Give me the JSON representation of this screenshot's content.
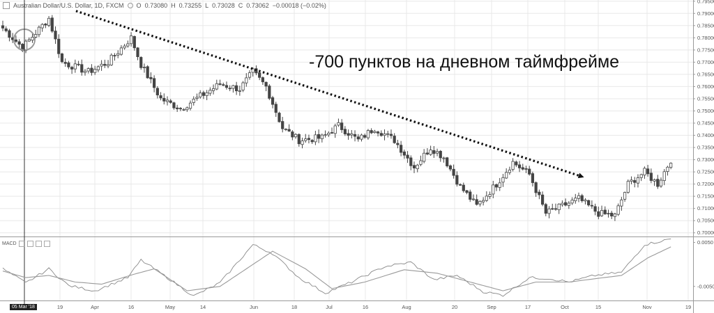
{
  "header": {
    "title": "Australian Dollar/U.S. Dollar, 1D, FXCM",
    "open_label": "O",
    "open": "0.73080",
    "high_label": "H",
    "high": "0.73255",
    "low_label": "L",
    "low": "0.73028",
    "close_label": "C",
    "close": "0.73062",
    "change": "−0.00018 (−0.02%)"
  },
  "annotation": "-700 пунктов на дневном таймфрейме",
  "macd_label": "MACD",
  "cursor_date": "05 Mar '18",
  "colors": {
    "up": "#ffffff",
    "down": "#444444",
    "wick": "#444444",
    "grid": "#e8e8e8",
    "trend": "#111111",
    "macd_line": "#888888",
    "signal_line": "#999999"
  },
  "chart_data": [
    {
      "type": "candlestick",
      "title": "Australian Dollar/U.S. Dollar, 1D, FXCM",
      "ylim": [
        0.6985,
        0.7955
      ],
      "yticks": [
        "0.79500",
        "0.79000",
        "0.78500",
        "0.78000",
        "0.77500",
        "0.77000",
        "0.76500",
        "0.76000",
        "0.75500",
        "0.75000",
        "0.74500",
        "0.74000",
        "0.73500",
        "0.73000",
        "0.72500",
        "0.72000",
        "0.71500",
        "0.71000",
        "0.70500",
        "0.70000"
      ],
      "x_labels": [
        "19",
        "Apr",
        "16",
        "May",
        "14",
        "Jun",
        "18",
        "Jul",
        "16",
        "Aug",
        "20",
        "Sep",
        "17",
        "Oct",
        "15",
        "Nov",
        "19"
      ],
      "grid": true,
      "key_points": [
        {
          "i": 0,
          "c": 0.784
        },
        {
          "i": 6,
          "c": 0.776
        },
        {
          "i": 14,
          "c": 0.788
        },
        {
          "i": 18,
          "c": 0.77
        },
        {
          "i": 26,
          "c": 0.766
        },
        {
          "i": 32,
          "c": 0.77
        },
        {
          "i": 39,
          "c": 0.78
        },
        {
          "i": 42,
          "c": 0.769
        },
        {
          "i": 48,
          "c": 0.755
        },
        {
          "i": 54,
          "c": 0.751
        },
        {
          "i": 60,
          "c": 0.756
        },
        {
          "i": 66,
          "c": 0.761
        },
        {
          "i": 72,
          "c": 0.759
        },
        {
          "i": 76,
          "c": 0.766
        },
        {
          "i": 80,
          "c": 0.76
        },
        {
          "i": 85,
          "c": 0.743
        },
        {
          "i": 90,
          "c": 0.738
        },
        {
          "i": 97,
          "c": 0.739
        },
        {
          "i": 102,
          "c": 0.744
        },
        {
          "i": 108,
          "c": 0.738
        },
        {
          "i": 113,
          "c": 0.743
        },
        {
          "i": 119,
          "c": 0.738
        },
        {
          "i": 125,
          "c": 0.727
        },
        {
          "i": 130,
          "c": 0.735
        },
        {
          "i": 134,
          "c": 0.731
        },
        {
          "i": 139,
          "c": 0.719
        },
        {
          "i": 144,
          "c": 0.711
        },
        {
          "i": 150,
          "c": 0.72
        },
        {
          "i": 155,
          "c": 0.729
        },
        {
          "i": 160,
          "c": 0.724
        },
        {
          "i": 165,
          "c": 0.708
        },
        {
          "i": 170,
          "c": 0.711
        },
        {
          "i": 175,
          "c": 0.714
        },
        {
          "i": 181,
          "c": 0.708
        },
        {
          "i": 186,
          "c": 0.707
        },
        {
          "i": 190,
          "c": 0.72
        },
        {
          "i": 195,
          "c": 0.725
        },
        {
          "i": 199,
          "c": 0.72
        },
        {
          "i": 203,
          "c": 0.73
        }
      ],
      "trendline": {
        "from": {
          "i": 18,
          "price": 0.791
        },
        "to": {
          "i": 175,
          "price": 0.7235
        }
      }
    },
    {
      "type": "line",
      "title": "MACD",
      "ylim": [
        -0.0082,
        0.0062
      ],
      "yticks": [
        "0.0050",
        "-0.0050"
      ],
      "series": [
        {
          "name": "",
          "key_points": [
            [
              0,
              -0.001
            ],
            [
              7,
              -0.0042
            ],
            [
              14,
              -0.001
            ],
            [
              20,
              -0.0048
            ],
            [
              28,
              -0.006
            ],
            [
              38,
              -0.003
            ],
            [
              42,
              0.001
            ],
            [
              50,
              -0.003
            ],
            [
              58,
              -0.0072
            ],
            [
              66,
              -0.0042
            ],
            [
              76,
              0.0045
            ],
            [
              82,
              0.0025
            ],
            [
              90,
              -0.003
            ],
            [
              98,
              -0.0065
            ],
            [
              106,
              -0.004
            ],
            [
              116,
              -0.0005
            ],
            [
              124,
              0.0005
            ],
            [
              131,
              -0.0035
            ],
            [
              138,
              -0.0025
            ],
            [
              146,
              -0.0062
            ],
            [
              152,
              -0.007
            ],
            [
              160,
              -0.003
            ],
            [
              166,
              -0.0032
            ],
            [
              172,
              -0.004
            ],
            [
              180,
              -0.0025
            ],
            [
              188,
              -0.0018
            ],
            [
              195,
              0.0045
            ],
            [
              203,
              0.0058
            ]
          ]
        },
        {
          "name": "",
          "key_points": [
            [
              0,
              -0.0015
            ],
            [
              7,
              -0.003
            ],
            [
              14,
              -0.0025
            ],
            [
              22,
              -0.004
            ],
            [
              30,
              -0.0045
            ],
            [
              40,
              -0.0022
            ],
            [
              46,
              -0.001
            ],
            [
              56,
              -0.006
            ],
            [
              66,
              -0.005
            ],
            [
              82,
              0.003
            ],
            [
              92,
              -0.001
            ],
            [
              100,
              -0.0055
            ],
            [
              110,
              -0.004
            ],
            [
              122,
              -0.0012
            ],
            [
              132,
              -0.002
            ],
            [
              142,
              -0.004
            ],
            [
              152,
              -0.006
            ],
            [
              162,
              -0.004
            ],
            [
              172,
              -0.004
            ],
            [
              188,
              -0.0025
            ],
            [
              196,
              0.0015
            ],
            [
              203,
              0.004
            ]
          ]
        }
      ]
    }
  ]
}
